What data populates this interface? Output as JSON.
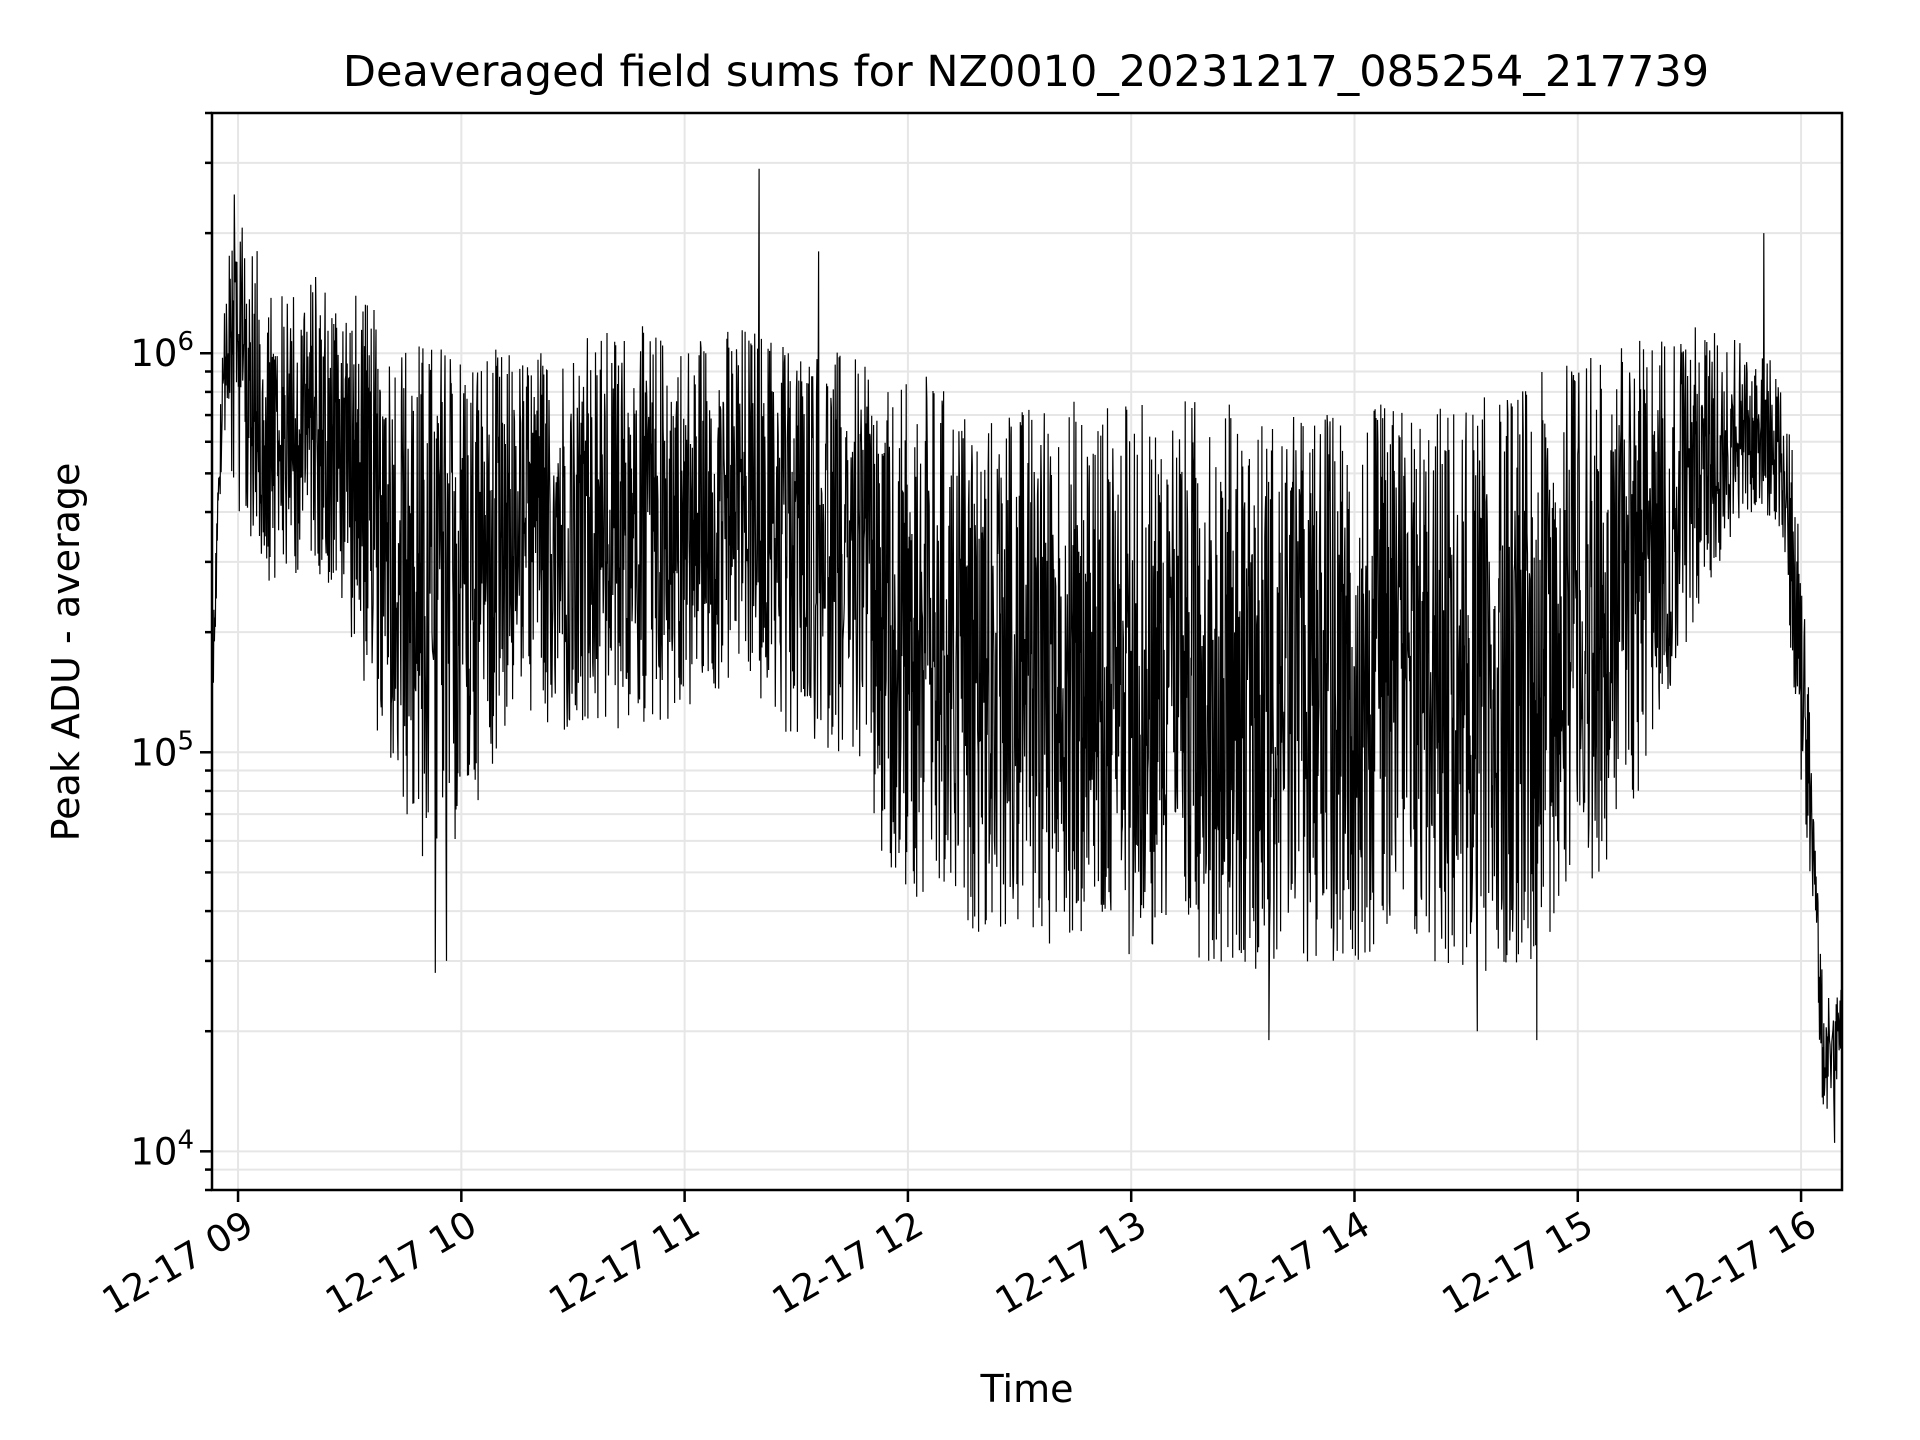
{
  "chart_data": {
    "type": "line",
    "title": "Deaveraged field sums for NZ0010_20231217_085254_217739",
    "xlabel": "Time",
    "ylabel": "Peak ADU - average",
    "yscale": "log",
    "ylim": [
      8000,
      4000000
    ],
    "xlim": [
      "2023-12-17 08:53",
      "2023-12-17 16:11"
    ],
    "grid": true,
    "x_ticks": [
      {
        "label": "12-17 09",
        "value": "2023-12-17 09:00"
      },
      {
        "label": "12-17 10",
        "value": "2023-12-17 10:00"
      },
      {
        "label": "12-17 11",
        "value": "2023-12-17 11:00"
      },
      {
        "label": "12-17 12",
        "value": "2023-12-17 12:00"
      },
      {
        "label": "12-17 13",
        "value": "2023-12-17 13:00"
      },
      {
        "label": "12-17 14",
        "value": "2023-12-17 14:00"
      },
      {
        "label": "12-17 15",
        "value": "2023-12-17 15:00"
      },
      {
        "label": "12-17 16",
        "value": "2023-12-17 16:00"
      }
    ],
    "y_ticks": [
      {
        "base": "10",
        "exp": "4",
        "value": 10000
      },
      {
        "base": "10",
        "exp": "5",
        "value": 100000
      },
      {
        "base": "10",
        "exp": "6",
        "value": 1000000
      }
    ],
    "series": [
      {
        "color": "#000000",
        "envelope": [
          {
            "x": "2023-12-17 08:53",
            "low": 120000,
            "high": 180000
          },
          {
            "x": "2023-12-17 08:56",
            "low": 650000,
            "high": 1200000
          },
          {
            "x": "2023-12-17 08:59",
            "low": 400000,
            "high": 2500000
          },
          {
            "x": "2023-12-17 09:10",
            "low": 250000,
            "high": 1400000
          },
          {
            "x": "2023-12-17 09:20",
            "low": 300000,
            "high": 1600000
          },
          {
            "x": "2023-12-17 09:30",
            "low": 200000,
            "high": 1500000
          },
          {
            "x": "2023-12-17 09:40",
            "low": 90000,
            "high": 1200000
          },
          {
            "x": "2023-12-17 09:50",
            "low": 50000,
            "high": 1100000
          },
          {
            "x": "2023-12-17 10:00",
            "low": 60000,
            "high": 1100000
          },
          {
            "x": "2023-12-17 10:15",
            "low": 130000,
            "high": 1000000
          },
          {
            "x": "2023-12-17 10:30",
            "low": 100000,
            "high": 1100000
          },
          {
            "x": "2023-12-17 10:45",
            "low": 110000,
            "high": 1200000
          },
          {
            "x": "2023-12-17 11:00",
            "low": 120000,
            "high": 1100000
          },
          {
            "x": "2023-12-17 11:15",
            "low": 150000,
            "high": 1200000
          },
          {
            "x": "2023-12-17 11:30",
            "low": 100000,
            "high": 1100000
          },
          {
            "x": "2023-12-17 11:45",
            "low": 100000,
            "high": 1000000
          },
          {
            "x": "2023-12-17 11:55",
            "low": 40000,
            "high": 800000
          },
          {
            "x": "2023-12-17 12:05",
            "low": 38000,
            "high": 900000
          },
          {
            "x": "2023-12-17 12:20",
            "low": 35000,
            "high": 700000
          },
          {
            "x": "2023-12-17 12:40",
            "low": 32000,
            "high": 800000
          },
          {
            "x": "2023-12-17 13:00",
            "low": 31000,
            "high": 750000
          },
          {
            "x": "2023-12-17 13:20",
            "low": 30000,
            "high": 800000
          },
          {
            "x": "2023-12-17 13:40",
            "low": 28000,
            "high": 700000
          },
          {
            "x": "2023-12-17 14:00",
            "low": 30000,
            "high": 750000
          },
          {
            "x": "2023-12-17 14:20",
            "low": 29000,
            "high": 750000
          },
          {
            "x": "2023-12-17 14:40",
            "low": 25000,
            "high": 800000
          },
          {
            "x": "2023-12-17 15:00",
            "low": 40000,
            "high": 1000000
          },
          {
            "x": "2023-12-17 15:15",
            "low": 70000,
            "high": 1100000
          },
          {
            "x": "2023-12-17 15:30",
            "low": 200000,
            "high": 1200000
          },
          {
            "x": "2023-12-17 15:45",
            "low": 400000,
            "high": 1100000
          },
          {
            "x": "2023-12-17 15:55",
            "low": 350000,
            "high": 900000
          },
          {
            "x": "2023-12-17 16:00",
            "low": 80000,
            "high": 400000
          },
          {
            "x": "2023-12-17 16:03",
            "low": 40000,
            "high": 90000
          },
          {
            "x": "2023-12-17 16:06",
            "low": 12000,
            "high": 25000
          },
          {
            "x": "2023-12-17 16:11",
            "low": 15000,
            "high": 26000
          }
        ],
        "spikes": [
          {
            "x": "2023-12-17 08:59",
            "y": 2500000
          },
          {
            "x": "2023-12-17 11:20",
            "y": 2900000
          },
          {
            "x": "2023-12-17 11:36",
            "y": 1800000
          },
          {
            "x": "2023-12-17 15:50",
            "y": 2000000
          },
          {
            "x": "2023-12-17 09:53",
            "y": 28000
          },
          {
            "x": "2023-12-17 09:56",
            "y": 30000
          },
          {
            "x": "2023-12-17 13:37",
            "y": 19000
          },
          {
            "x": "2023-12-17 14:49",
            "y": 19000
          },
          {
            "x": "2023-12-17 14:33",
            "y": 20000
          },
          {
            "x": "2023-12-17 16:09",
            "y": 10500
          }
        ]
      }
    ]
  }
}
